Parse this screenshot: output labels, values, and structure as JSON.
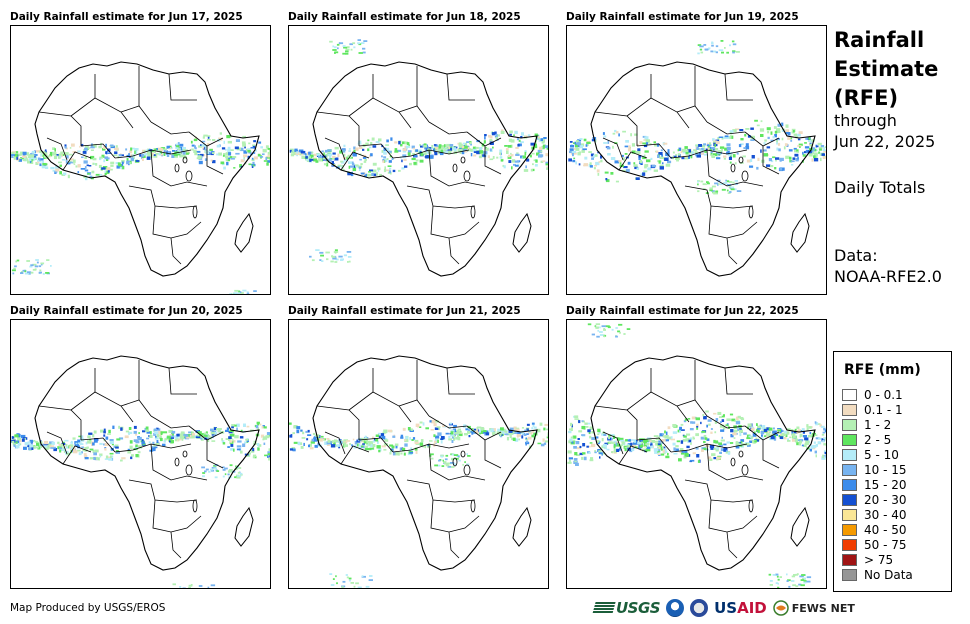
{
  "panels": [
    {
      "title": "Daily Rainfall estimate for Jun 17, 2025"
    },
    {
      "title": "Daily Rainfall estimate for Jun 18, 2025"
    },
    {
      "title": "Daily Rainfall estimate for Jun 19, 2025"
    },
    {
      "title": "Daily Rainfall estimate for Jun 20, 2025"
    },
    {
      "title": "Daily Rainfall estimate for Jun 21, 2025"
    },
    {
      "title": "Daily Rainfall estimate for Jun 22, 2025"
    }
  ],
  "side": {
    "heading": "Rainfall Estimate (RFE)",
    "through_label": "through",
    "through_date": "Jun 22, 2025",
    "totals": "Daily Totals",
    "data_label": "Data:",
    "data_source": "NOAA-RFE2.0"
  },
  "legend": {
    "title": "RFE (mm)",
    "items": [
      {
        "label": "0 - 0.1",
        "color": "#ffffff"
      },
      {
        "label": "0.1 - 1",
        "color": "#f2dcc0"
      },
      {
        "label": "1 - 2",
        "color": "#b4f0b4"
      },
      {
        "label": "2 - 5",
        "color": "#5fe65f"
      },
      {
        "label": "5 - 10",
        "color": "#b4ecf8"
      },
      {
        "label": "10 - 15",
        "color": "#78b4f0"
      },
      {
        "label": "15 - 20",
        "color": "#3c8ceb"
      },
      {
        "label": "20 - 30",
        "color": "#1450d2"
      },
      {
        "label": "30 - 40",
        "color": "#fae696"
      },
      {
        "label": "40 - 50",
        "color": "#f59a00"
      },
      {
        "label": "50 - 75",
        "color": "#f03c00"
      },
      {
        "label": "> 75",
        "color": "#a01414"
      },
      {
        "label": "No Data",
        "color": "#969696"
      }
    ]
  },
  "footer": {
    "credit": "Map Produced by USGS/EROS"
  },
  "logos": {
    "usgs": "USGS",
    "usaid_a": "US",
    "usaid_b": "AID",
    "fews": "FEWS NET"
  }
}
